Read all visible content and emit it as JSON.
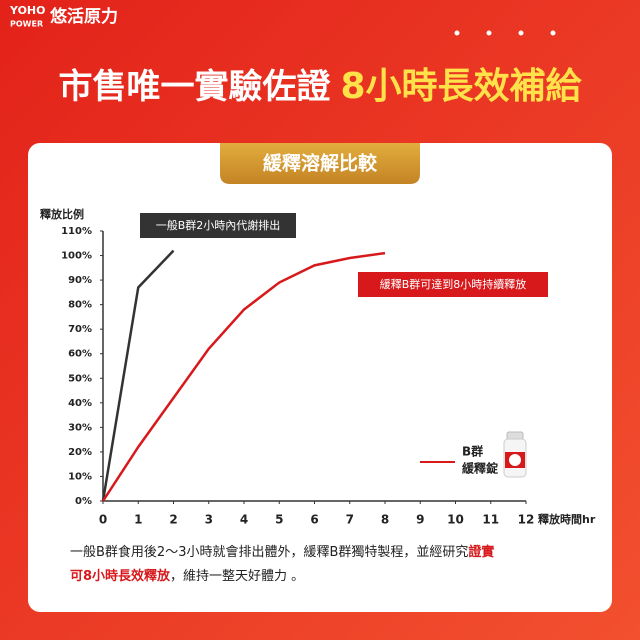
{
  "logo": {
    "brand_top": "YOHO",
    "brand_bottom": "POWER",
    "brand_cn": "悠活原力"
  },
  "headline": [
    "市售唯一實驗佐證",
    "8小時長效補給"
  ],
  "banner": "緩釋溶解比較",
  "chart_data": {
    "type": "line",
    "ylabel": "釋放比例",
    "xlabel": "釋放時間hr",
    "xlim": [
      0,
      12
    ],
    "xticks": [
      0,
      1,
      2,
      3,
      4,
      5,
      6,
      7,
      8,
      9,
      10,
      11,
      12
    ],
    "ylim": [
      0,
      110
    ],
    "yticks": [
      {
        "value": 0,
        "label": "0%"
      },
      {
        "value": 10,
        "label": "10%"
      },
      {
        "value": 20,
        "label": "20%"
      },
      {
        "value": 30,
        "label": "30%"
      },
      {
        "value": 40,
        "label": "40%"
      },
      {
        "value": 50,
        "label": "50%"
      },
      {
        "value": 60,
        "label": "60%"
      },
      {
        "value": 70,
        "label": "70%"
      },
      {
        "value": 80,
        "label": "80%"
      },
      {
        "value": 90,
        "label": "90%"
      },
      {
        "value": 100,
        "label": "100%"
      },
      {
        "value": 110,
        "label": "110%"
      }
    ],
    "series": [
      {
        "color": "#333333",
        "x": [
          0,
          1,
          2
        ],
        "values": [
          0,
          87,
          102
        ],
        "annotation": "一般B群2小時內代謝排出"
      },
      {
        "color": "#d7191c",
        "x": [
          0,
          1,
          2,
          3,
          4,
          5,
          6,
          7,
          8
        ],
        "values": [
          0,
          22,
          42,
          62,
          78,
          89,
          96,
          99,
          101
        ],
        "annotation": "緩釋B群可達到8小時持續釋放",
        "legend": [
          "B群",
          "緩釋錠"
        ]
      }
    ]
  },
  "footer": [
    [
      {
        "text": "一般B群食用後2～3小時就會排出體外，緩釋B群獨特製程，並經研究",
        "highlight": false
      },
      {
        "text": "證實",
        "highlight": true
      }
    ],
    [
      {
        "text": "可8小時長效釋放",
        "highlight": true
      },
      {
        "text": "，維持一整天好體力 。",
        "highlight": false
      }
    ]
  ]
}
